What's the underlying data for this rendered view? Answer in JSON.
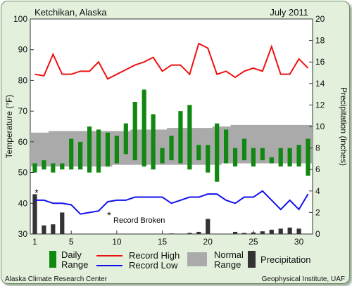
{
  "header": {
    "location": "Ketchikan, Alaska",
    "period": "July 2011"
  },
  "footer": {
    "left": "Alaska Climate Research Center",
    "right": "Geophysical Institute, UAF"
  },
  "annotation": {
    "record_marker": "*",
    "record_text": "Record Broken"
  },
  "legend": {
    "daily_range_line1": "Daily",
    "daily_range_line2": "Range",
    "record_high": "Record High",
    "record_low": "Record Low",
    "normal_line1": "Normal",
    "normal_line2": "Range",
    "precipitation": "Precipitation"
  },
  "colors": {
    "daily_range": "#118811",
    "record_high": "#ee1111",
    "record_low": "#1111ee",
    "normal_range": "#aaaaaa",
    "precipitation": "#333333",
    "plot_background": "#ffffff",
    "card_background": "#e3f0dc"
  },
  "chart_data": {
    "type": "bar",
    "title": "Ketchikan, Alaska",
    "subtitle": "July 2011",
    "xlabel": "",
    "ylabel": "Temperature (°F)",
    "y2label": "Precipitation (inches)",
    "xlim": [
      0.5,
      31.5
    ],
    "ylim": [
      30,
      100
    ],
    "y2lim": [
      0,
      20
    ],
    "x_ticks": [
      1,
      5,
      10,
      15,
      20,
      25,
      30
    ],
    "y_ticks": [
      30,
      40,
      50,
      60,
      70,
      80,
      90,
      100
    ],
    "y2_ticks": [
      0,
      2,
      4,
      6,
      8,
      10,
      12,
      14,
      16,
      18,
      20
    ],
    "grid": false,
    "days": [
      1,
      2,
      3,
      4,
      5,
      6,
      7,
      8,
      9,
      10,
      11,
      12,
      13,
      14,
      15,
      16,
      17,
      18,
      19,
      20,
      21,
      22,
      23,
      24,
      25,
      26,
      27,
      28,
      29,
      30,
      31
    ],
    "series": [
      {
        "name": "Daily Range",
        "type": "floating-bar",
        "high": [
          53,
          54,
          53,
          53,
          61,
          60,
          65,
          64,
          63,
          62,
          66,
          73,
          77,
          69,
          58,
          62,
          70,
          72,
          59,
          59,
          66,
          64,
          58,
          61,
          58,
          58,
          55,
          58,
          58,
          59,
          61
        ],
        "low": [
          50,
          51,
          50,
          51,
          51,
          51,
          50,
          50,
          52,
          53,
          56,
          54,
          52,
          51,
          53,
          54,
          53,
          51,
          54,
          50,
          47,
          53,
          52,
          54,
          52,
          54,
          53,
          52,
          52,
          52,
          49
        ]
      },
      {
        "name": "Record High",
        "type": "line",
        "values": [
          82,
          81.5,
          88.5,
          82,
          82,
          83,
          83,
          86,
          80.5,
          82,
          83.5,
          85,
          86,
          87.5,
          83,
          85,
          85,
          82,
          92,
          90.5,
          82,
          83,
          81,
          83,
          84,
          83,
          91,
          82,
          82,
          87,
          84
        ]
      },
      {
        "name": "Record Low",
        "type": "line",
        "values": [
          41,
          41,
          40,
          40,
          39.5,
          36.5,
          37,
          37.5,
          40.5,
          41,
          41,
          42,
          42,
          42,
          42,
          40,
          41,
          42,
          42,
          43,
          43,
          41,
          40,
          42,
          42,
          44,
          41,
          38,
          41,
          38,
          43
        ]
      },
      {
        "name": "Normal Range",
        "type": "band",
        "high": [
          63,
          63,
          63.5,
          63.5,
          63.5,
          63.5,
          63.5,
          63.5,
          63.5,
          63.5,
          63.5,
          64,
          64,
          64,
          64,
          64.5,
          64.5,
          64.5,
          64.5,
          64.5,
          65,
          65,
          65.5,
          65.5,
          65.5,
          65.5,
          65.5,
          65.5,
          65.5,
          65.5,
          65.5
        ],
        "low": [
          52,
          52,
          52,
          52,
          52,
          52,
          52,
          52,
          52,
          52.5,
          52.5,
          52.5,
          52.5,
          52.5,
          52.5,
          52.5,
          52.5,
          52.5,
          52.5,
          52.5,
          52.5,
          53,
          53,
          53,
          53,
          53,
          53,
          53,
          53,
          53,
          53
        ]
      },
      {
        "name": "Precipitation",
        "type": "bar",
        "axis": "y2",
        "values": [
          3.7,
          0.8,
          0.9,
          2.0,
          0,
          0,
          0,
          0,
          0,
          0,
          0,
          0,
          0,
          0,
          0,
          0.05,
          0,
          0.1,
          0.2,
          1.4,
          0,
          0,
          0.2,
          0.1,
          0.15,
          0.25,
          0.4,
          0.5,
          0.6,
          0.5,
          0
        ]
      }
    ],
    "record_broken_days": [
      1
    ],
    "legend_position": "bottom"
  }
}
